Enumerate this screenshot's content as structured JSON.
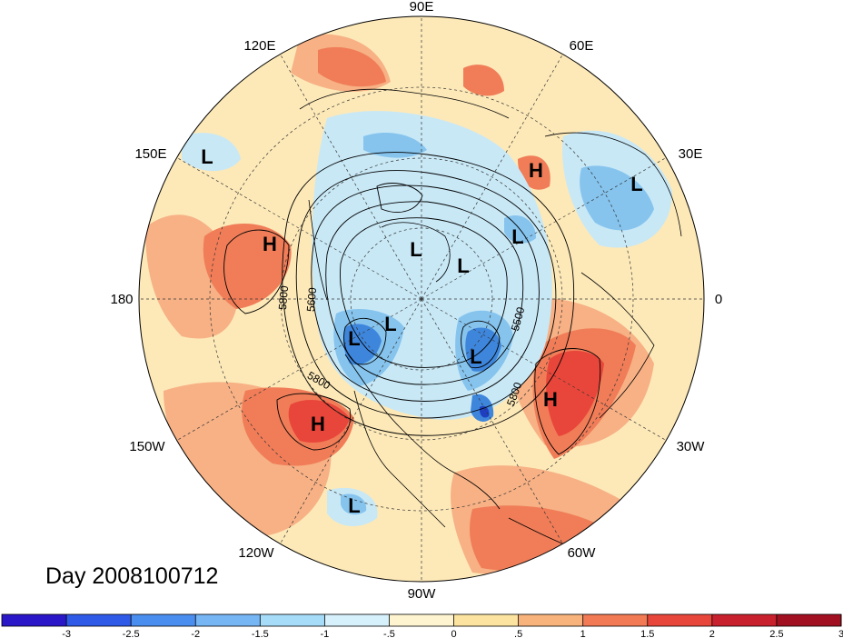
{
  "day_label": "Day 2008100712",
  "colors": {
    "ocean_base": "#fde9b8",
    "pos_strong": "#e8463a",
    "pos_mid": "#f07d58",
    "pos_light": "#f7b185",
    "neg_light": "#c8e8f6",
    "neg_mid": "#86c4ee",
    "neg_strong": "#3e86dc",
    "neg_deep": "#1f3fc0"
  },
  "longitude_labels": [
    {
      "name": "lon-90e",
      "text": "90E"
    },
    {
      "name": "lon-60e",
      "text": "60E"
    },
    {
      "name": "lon-30e",
      "text": "30E"
    },
    {
      "name": "lon-0",
      "text": "0"
    },
    {
      "name": "lon-30w",
      "text": "30W"
    },
    {
      "name": "lon-60w",
      "text": "60W"
    },
    {
      "name": "lon-90w",
      "text": "90W"
    },
    {
      "name": "lon-120w",
      "text": "120W"
    },
    {
      "name": "lon-150w",
      "text": "150W"
    },
    {
      "name": "lon-180",
      "text": "180"
    },
    {
      "name": "lon-150e",
      "text": "150E"
    },
    {
      "name": "lon-120e",
      "text": "120E"
    }
  ],
  "pressure_centers": [
    {
      "type": "L"
    },
    {
      "type": "H"
    },
    {
      "type": "L"
    },
    {
      "type": "H"
    },
    {
      "type": "L"
    },
    {
      "type": "L"
    },
    {
      "type": "L"
    },
    {
      "type": "L"
    },
    {
      "type": "L"
    },
    {
      "type": "L"
    },
    {
      "type": "H"
    },
    {
      "type": "H"
    },
    {
      "type": "L"
    }
  ],
  "contour_labels": [
    "5800",
    "5600",
    "5500",
    "5800",
    "5800"
  ],
  "colorbar": {
    "colors": [
      "#2a17c8",
      "#2f5ae8",
      "#4a8ef0",
      "#76b6f5",
      "#a6dcf8",
      "#d6f1fb",
      "#fef5d0",
      "#fde3a0",
      "#f8b27c",
      "#f27a54",
      "#e8463a",
      "#c8202c",
      "#a01020"
    ],
    "ticks": [
      "-3",
      "-2.5",
      "-2",
      "-1.5",
      "-1",
      "-.5",
      "0",
      ".5",
      "1",
      "1.5",
      "2",
      "2.5",
      "3"
    ]
  }
}
